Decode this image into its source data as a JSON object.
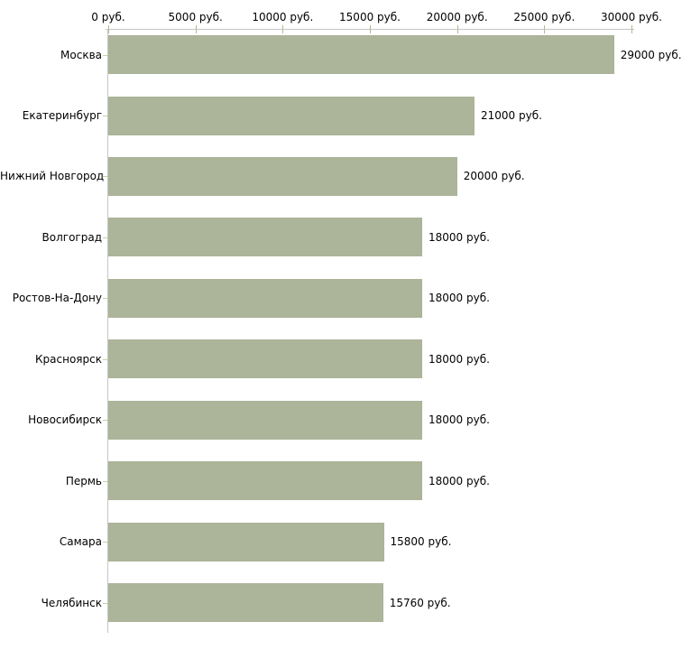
{
  "chart_data": {
    "type": "bar",
    "orientation": "horizontal",
    "categories": [
      "Москва",
      "Екатеринбург",
      "Нижний Новгород",
      "Волгоград",
      "Ростов-На-Дону",
      "Красноярск",
      "Новосибирск",
      "Пермь",
      "Самара",
      "Челябинск"
    ],
    "values": [
      29000,
      21000,
      20000,
      18000,
      18000,
      18000,
      18000,
      18000,
      15800,
      15760
    ],
    "value_labels": [
      "29000 руб.",
      "21000 руб.",
      "20000 руб.",
      "18000 руб.",
      "18000 руб.",
      "18000 руб.",
      "18000 руб.",
      "18000 руб.",
      "15800 руб.",
      "15760 руб."
    ],
    "title": "",
    "xlabel": "",
    "ylabel": "",
    "grid": false,
    "legend": "none",
    "x_axis": {
      "position": "top",
      "min": 0,
      "max": 30000,
      "tick_values": [
        0,
        5000,
        10000,
        15000,
        20000,
        25000,
        30000
      ],
      "tick_labels": [
        "0 руб.",
        "5000 руб.",
        "10000 руб.",
        "15000 руб.",
        "20000 руб.",
        "25000 руб.",
        "30000 руб."
      ]
    },
    "colors": {
      "bar": "#acb499",
      "axis_line": "#c6c6c6",
      "axis_tick": "#b3b791",
      "category_tick": "#c9cdab",
      "text": "#000000",
      "background": "#ffffff"
    }
  }
}
